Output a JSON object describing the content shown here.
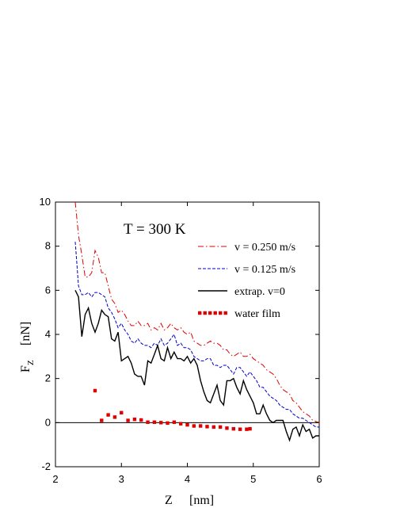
{
  "chart_data": {
    "type": "line",
    "annotation": "T = 300 K",
    "xlabel": "Z",
    "xlabel_unit": "[nm]",
    "ylabel": "F",
    "ylabel_sub": "Z",
    "ylabel_unit": "[nN]",
    "xlim": [
      2,
      6
    ],
    "ylim": [
      -2,
      10
    ],
    "xticks": [
      "2",
      "3",
      "4",
      "5",
      "6"
    ],
    "yticks": [
      "-2",
      "0",
      "2",
      "4",
      "6",
      "8",
      "10"
    ],
    "grid": false,
    "legend_position": "top-right",
    "zero_line": true,
    "series": [
      {
        "name": "v = 0.250 m/s",
        "style": "dash-dot",
        "color": "#e00000",
        "x": [
          2.3,
          2.35,
          2.4,
          2.45,
          2.5,
          2.55,
          2.6,
          2.65,
          2.7,
          2.75,
          2.8,
          2.85,
          2.9,
          2.95,
          3.0,
          3.05,
          3.1,
          3.15,
          3.2,
          3.25,
          3.3,
          3.35,
          3.4,
          3.45,
          3.5,
          3.55,
          3.6,
          3.65,
          3.7,
          3.75,
          3.8,
          3.85,
          3.9,
          3.95,
          4.0,
          4.05,
          4.1,
          4.15,
          4.2,
          4.25,
          4.3,
          4.35,
          4.4,
          4.45,
          4.5,
          4.55,
          4.6,
          4.65,
          4.7,
          4.75,
          4.8,
          4.85,
          4.9,
          4.95,
          5.0,
          5.05,
          5.1,
          5.15,
          5.2,
          5.25,
          5.3,
          5.35,
          5.4,
          5.45,
          5.5,
          5.55,
          5.6,
          5.65,
          5.7,
          5.75,
          5.8,
          5.85,
          5.9,
          5.95,
          6.0
        ],
        "y": [
          10.0,
          8.5,
          7.6,
          6.6,
          6.6,
          6.8,
          7.8,
          7.5,
          6.8,
          6.8,
          6.2,
          5.6,
          5.4,
          5.0,
          5.1,
          4.9,
          4.6,
          4.4,
          4.4,
          4.6,
          4.4,
          4.4,
          4.5,
          4.2,
          4.3,
          4.2,
          4.5,
          4.2,
          4.3,
          4.5,
          4.3,
          4.2,
          4.3,
          4.1,
          4.0,
          4.1,
          3.7,
          3.6,
          3.5,
          3.5,
          3.6,
          3.7,
          3.6,
          3.6,
          3.5,
          3.3,
          3.3,
          3.1,
          3.0,
          3.1,
          3.2,
          3.0,
          3.0,
          3.1,
          2.9,
          2.8,
          2.7,
          2.6,
          2.4,
          2.3,
          2.2,
          2.0,
          1.7,
          1.5,
          1.4,
          1.3,
          1.0,
          0.9,
          0.7,
          0.5,
          0.4,
          0.3,
          0.1,
          0.05,
          0.0
        ]
      },
      {
        "name": "v = 0.125 m/s",
        "style": "dashed",
        "color": "#0000cc",
        "x": [
          2.3,
          2.35,
          2.4,
          2.45,
          2.5,
          2.55,
          2.6,
          2.65,
          2.7,
          2.75,
          2.8,
          2.85,
          2.9,
          2.95,
          3.0,
          3.05,
          3.1,
          3.15,
          3.2,
          3.25,
          3.3,
          3.35,
          3.4,
          3.45,
          3.5,
          3.55,
          3.6,
          3.65,
          3.7,
          3.75,
          3.8,
          3.85,
          3.9,
          3.95,
          4.0,
          4.05,
          4.1,
          4.15,
          4.2,
          4.25,
          4.3,
          4.35,
          4.4,
          4.45,
          4.5,
          4.55,
          4.6,
          4.65,
          4.7,
          4.75,
          4.8,
          4.85,
          4.9,
          4.95,
          5.0,
          5.05,
          5.1,
          5.15,
          5.2,
          5.25,
          5.3,
          5.35,
          5.4,
          5.45,
          5.5,
          5.55,
          5.6,
          5.65,
          5.7,
          5.75,
          5.8,
          5.85,
          5.9,
          5.95,
          6.0
        ],
        "y": [
          8.2,
          6.2,
          5.8,
          5.8,
          5.9,
          5.7,
          5.9,
          5.9,
          5.8,
          5.7,
          5.2,
          5.0,
          4.7,
          4.3,
          4.5,
          4.2,
          4.0,
          3.7,
          3.6,
          3.8,
          3.6,
          3.5,
          3.5,
          3.4,
          3.6,
          3.5,
          3.8,
          3.5,
          3.6,
          3.8,
          4.0,
          3.5,
          3.6,
          3.4,
          3.4,
          3.3,
          3.0,
          2.9,
          2.8,
          2.8,
          2.9,
          2.9,
          2.6,
          2.6,
          2.5,
          2.6,
          2.6,
          2.4,
          2.2,
          2.5,
          2.5,
          2.3,
          2.1,
          2.3,
          2.1,
          1.9,
          1.6,
          1.6,
          1.4,
          1.2,
          1.1,
          1.0,
          0.8,
          0.7,
          0.6,
          0.6,
          0.4,
          0.3,
          0.2,
          0.2,
          0.1,
          0.0,
          -0.1,
          -0.2,
          -0.2
        ]
      },
      {
        "name": "extrap. v=0",
        "style": "solid",
        "color": "#000000",
        "x": [
          2.3,
          2.35,
          2.4,
          2.45,
          2.5,
          2.55,
          2.6,
          2.65,
          2.7,
          2.75,
          2.8,
          2.85,
          2.9,
          2.95,
          3.0,
          3.05,
          3.1,
          3.15,
          3.2,
          3.25,
          3.3,
          3.35,
          3.4,
          3.45,
          3.5,
          3.55,
          3.6,
          3.65,
          3.7,
          3.75,
          3.8,
          3.85,
          3.9,
          3.95,
          4.0,
          4.05,
          4.1,
          4.15,
          4.2,
          4.25,
          4.3,
          4.35,
          4.4,
          4.45,
          4.5,
          4.55,
          4.6,
          4.65,
          4.7,
          4.75,
          4.8,
          4.85,
          4.9,
          4.95,
          5.0,
          5.05,
          5.1,
          5.15,
          5.2,
          5.25,
          5.3,
          5.35,
          5.4,
          5.45,
          5.5,
          5.55,
          5.6,
          5.65,
          5.7,
          5.75,
          5.8,
          5.85,
          5.9,
          5.95,
          6.0
        ],
        "y": [
          6.0,
          5.7,
          3.9,
          4.9,
          5.2,
          4.5,
          4.1,
          4.5,
          5.1,
          4.9,
          4.8,
          3.8,
          3.7,
          4.1,
          2.8,
          2.9,
          3.0,
          2.7,
          2.2,
          2.1,
          2.1,
          1.7,
          2.8,
          2.7,
          3.1,
          3.5,
          2.9,
          2.8,
          3.4,
          2.9,
          3.2,
          2.9,
          2.9,
          2.8,
          3.0,
          2.7,
          2.9,
          2.6,
          1.9,
          1.4,
          1.0,
          0.9,
          1.3,
          1.7,
          1.0,
          0.8,
          1.9,
          1.9,
          2.0,
          1.6,
          1.3,
          1.9,
          1.5,
          1.2,
          0.9,
          0.4,
          0.4,
          0.8,
          0.4,
          0.1,
          0.0,
          0.1,
          0.1,
          0.1,
          -0.4,
          -0.8,
          -0.3,
          -0.2,
          -0.6,
          -0.1,
          -0.4,
          -0.3,
          -0.7,
          -0.6,
          -0.6
        ]
      },
      {
        "name": "water film",
        "style": "dotted-squares",
        "color": "#e00000",
        "x": [
          2.6,
          2.7,
          2.8,
          2.9,
          3.0,
          3.1,
          3.2,
          3.3,
          3.4,
          3.5,
          3.6,
          3.7,
          3.8,
          3.9,
          4.0,
          4.1,
          4.2,
          4.3,
          4.4,
          4.5,
          4.6,
          4.7,
          4.8,
          4.9,
          4.95
        ],
        "y": [
          1.45,
          0.1,
          0.35,
          0.25,
          0.45,
          0.1,
          0.15,
          0.12,
          0.02,
          0.02,
          0.0,
          -0.02,
          0.02,
          -0.05,
          -0.1,
          -0.15,
          -0.15,
          -0.18,
          -0.2,
          -0.2,
          -0.25,
          -0.28,
          -0.3,
          -0.3,
          -0.28
        ]
      }
    ]
  }
}
